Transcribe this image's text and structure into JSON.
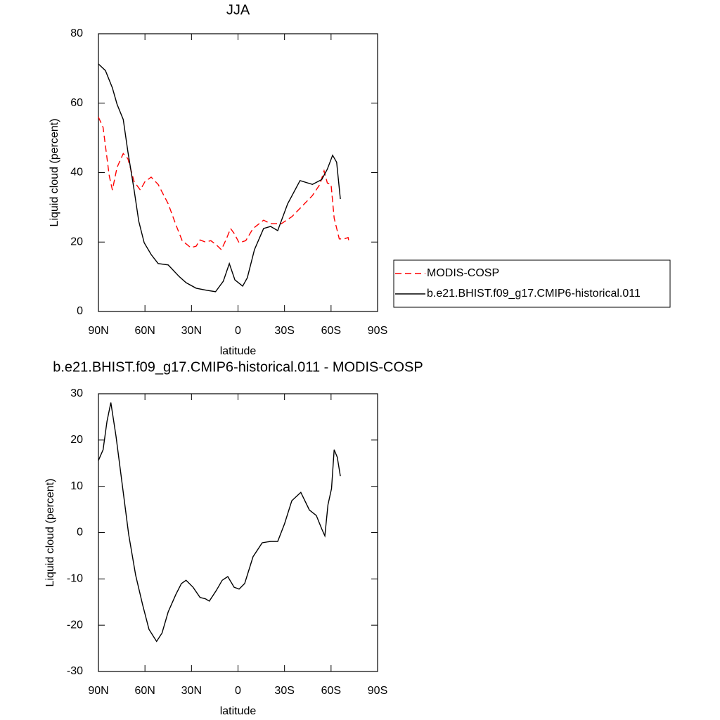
{
  "chart_data": [
    {
      "type": "line",
      "title": "JJA",
      "x_label": "latitude",
      "y_label": "Liquid cloud (percent)",
      "xlim": [
        90,
        -90
      ],
      "ylim": [
        0,
        80
      ],
      "xticks": [
        {
          "value": 90,
          "label": "90N"
        },
        {
          "value": 60,
          "label": "60N"
        },
        {
          "value": 30,
          "label": "30N"
        },
        0,
        {
          "value": -30,
          "label": "30S"
        },
        {
          "value": -60,
          "label": "60S"
        },
        {
          "value": -90,
          "label": "90S"
        }
      ],
      "yticks": [
        0,
        20,
        40,
        60,
        80
      ],
      "legend": "right",
      "series": [
        {
          "name": "MODIS-COSP",
          "color": "#ff0000",
          "dashed": true,
          "x": [
            90,
            87,
            83,
            81,
            78,
            74,
            71,
            67,
            63,
            60,
            56,
            51.5,
            45,
            40,
            36,
            30.5,
            27,
            24.5,
            21,
            17.5,
            14,
            10.7,
            7.5,
            4.8,
            2.5,
            -0.7,
            -5,
            -9.7,
            -16.5,
            -21,
            -28,
            -34.7,
            -41.5,
            -48,
            -52.8,
            -55.5,
            -57.6,
            -60,
            -62,
            -65.3,
            -68.4,
            -71,
            -71.5
          ],
          "values": [
            56,
            53,
            39,
            35,
            41.5,
            45.5,
            44,
            37.4,
            35,
            37.4,
            38.7,
            36.6,
            31,
            24.9,
            20.4,
            18.4,
            18.8,
            20.6,
            20,
            20.4,
            19.2,
            17.8,
            20.9,
            23.9,
            22.5,
            19.8,
            20.4,
            23.9,
            26.3,
            25.3,
            25.3,
            27.3,
            30.4,
            33.4,
            36.6,
            40.5,
            37,
            36.6,
            26.9,
            20.9,
            20.9,
            21.3,
            20.2
          ]
        },
        {
          "name": "b.e21.BHIST.f09_g17.CMIP6-historical.011",
          "color": "#000000",
          "dashed": false,
          "x": [
            90,
            85.5,
            81,
            78,
            74,
            71,
            67,
            64,
            60.5,
            56,
            51.5,
            45,
            38,
            33.5,
            27,
            20,
            14.5,
            9.5,
            5.6,
            2,
            -3,
            -6,
            -10.6,
            -16.5,
            -21,
            -25.6,
            -32,
            -40,
            -48,
            -54,
            -57.6,
            -61,
            -63.6,
            -66
          ],
          "values": [
            71.3,
            69.4,
            64.4,
            59.7,
            55.3,
            46,
            35,
            26,
            19.8,
            16.4,
            13.8,
            13.4,
            10.1,
            8.3,
            6.7,
            6.1,
            5.7,
            8.7,
            13.8,
            9.1,
            7.3,
            9.7,
            17.8,
            23.9,
            24.5,
            23.3,
            31,
            37.7,
            36.6,
            38,
            41,
            45,
            43,
            32.4
          ]
        }
      ]
    },
    {
      "type": "line",
      "title": "b.e21.BHIST.f09_g17.CMIP6-historical.011 - MODIS-COSP",
      "x_label": "latitude",
      "y_label": "Liquid cloud (percent)",
      "xlim": [
        90,
        -90
      ],
      "ylim": [
        -30,
        30
      ],
      "xticks": [
        {
          "value": 90,
          "label": "90N"
        },
        {
          "value": 60,
          "label": "60N"
        },
        {
          "value": 30,
          "label": "30N"
        },
        0,
        {
          "value": -30,
          "label": "30S"
        },
        {
          "value": -60,
          "label": "60S"
        },
        {
          "value": -90,
          "label": "90S"
        }
      ],
      "yticks": [
        -30,
        -20,
        -10,
        0,
        10,
        20,
        30
      ],
      "color": "#000000",
      "x": [
        90,
        87,
        84.5,
        82,
        78.7,
        74,
        70.5,
        66,
        61.5,
        57.4,
        52.5,
        49,
        45,
        40,
        36.5,
        33.5,
        29,
        24.5,
        21,
        18.5,
        14,
        10.2,
        6.6,
        2.5,
        -0.7,
        -4.3,
        -9.7,
        -15.6,
        -21,
        -25.6,
        -30,
        -34.7,
        -40.5,
        -46,
        -50.5,
        -54,
        -56,
        -58,
        -60.3,
        -62,
        -64,
        -66
      ],
      "values": [
        15.6,
        17.9,
        24,
        28.1,
        20.9,
        8.7,
        -0.4,
        -9.2,
        -15.6,
        -20.9,
        -23.5,
        -21.7,
        -17.1,
        -13.3,
        -11,
        -10.3,
        -11.8,
        -14,
        -14.3,
        -14.8,
        -12.5,
        -10.3,
        -9.5,
        -11.8,
        -12.2,
        -11,
        -5.2,
        -2.2,
        -1.9,
        -1.9,
        1.9,
        6.9,
        8.7,
        4.9,
        3.7,
        0.8,
        -0.7,
        6,
        9.5,
        17.9,
        16.3,
        12.2
      ]
    }
  ]
}
